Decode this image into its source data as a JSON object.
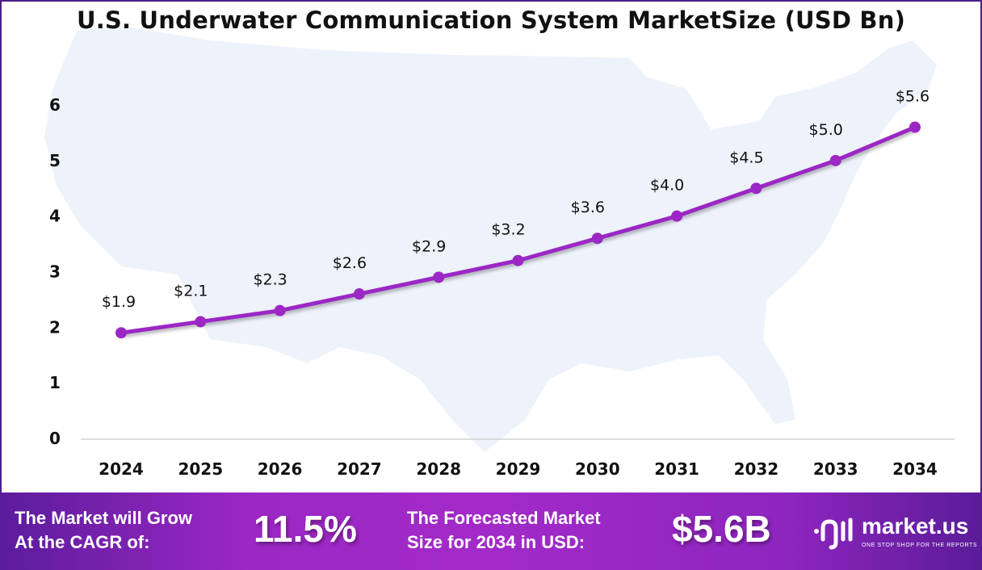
{
  "chart_data": {
    "type": "line",
    "title": "U.S. Underwater Communication System MarketSize (USD Bn)",
    "categories": [
      "2024",
      "2025",
      "2026",
      "2027",
      "2028",
      "2029",
      "2030",
      "2031",
      "2032",
      "2033",
      "2034"
    ],
    "values": [
      1.9,
      2.1,
      2.3,
      2.6,
      2.9,
      3.2,
      3.6,
      4.0,
      4.5,
      5.0,
      5.6
    ],
    "data_labels": [
      "$1.9",
      "$2.1",
      "$2.3",
      "$2.6",
      "$2.9",
      "$3.2",
      "$3.6",
      "$4.0",
      "$4.5",
      "$5.0",
      "$5.6"
    ],
    "yticks": [
      "0",
      "1",
      "2",
      "3",
      "4",
      "5",
      "6"
    ],
    "ylim": [
      0,
      6
    ],
    "grid": false,
    "line_color": "#9b27c4",
    "background_map": "united-states-silhouette",
    "map_color": "#eef2fb"
  },
  "footer": {
    "cagr_label": [
      "The Market will Grow",
      "At the CAGR of:"
    ],
    "cagr_value": "11.5%",
    "forecast_label": [
      "The Forecasted Market",
      "Size for 2034 in USD:"
    ],
    "forecast_value": "$5.6B",
    "brand": "market.us",
    "tagline": "ONE STOP SHOP FOR THE REPORTS",
    "gradient_colors": [
      "#5b1c9c",
      "#a22ac8"
    ]
  }
}
